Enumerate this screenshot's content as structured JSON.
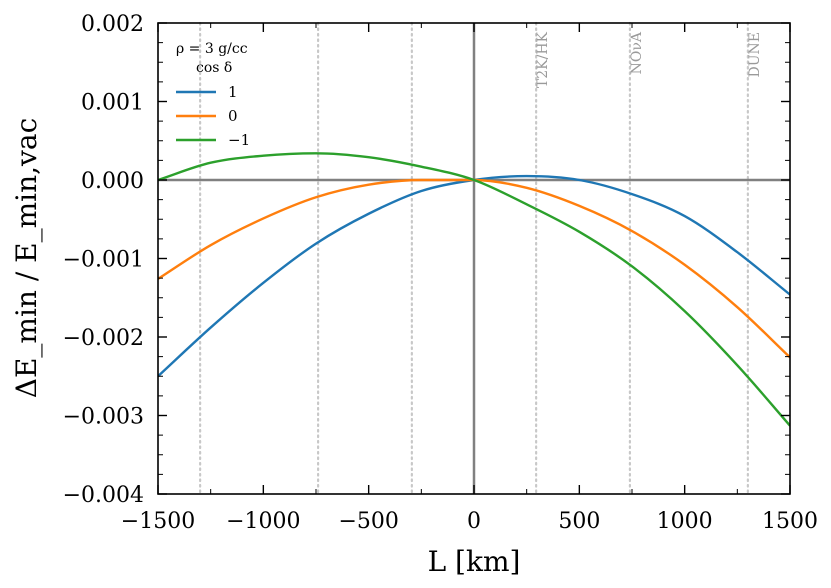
{
  "chart_data": {
    "type": "line",
    "title": "",
    "xlabel": "L [km]",
    "ylabel": "ΔE_min / E_min,vac",
    "xlim": [
      -1500,
      1500
    ],
    "ylim": [
      -0.004,
      0.002
    ],
    "x_ticks": [
      -1500,
      -1000,
      -500,
      0,
      500,
      1000,
      1500
    ],
    "x_tick_labels": [
      "−1500",
      "−1000",
      "−500",
      "0",
      "500",
      "1000",
      "1500"
    ],
    "y_ticks": [
      -0.004,
      -0.003,
      -0.002,
      -0.001,
      0.0,
      0.001,
      0.002
    ],
    "y_tick_labels": [
      "−0.004",
      "−0.003",
      "−0.002",
      "−0.001",
      "0.000",
      "0.001",
      "0.002"
    ],
    "legend": {
      "title_line1": "ρ = 3 g/cc",
      "title_line2": "cos δ",
      "placement": "top-left"
    },
    "x": [
      -1500,
      -1250,
      -1000,
      -750,
      -500,
      -250,
      0,
      250,
      500,
      750,
      1000,
      1250,
      1500
    ],
    "series": [
      {
        "name": "1",
        "color": "#1f77b4",
        "values": [
          -0.0025,
          -0.00188,
          -0.00131,
          -0.00081,
          -0.00043,
          -0.00014,
          0.0,
          5e-05,
          0.0,
          -0.00018,
          -0.00046,
          -0.00092,
          -0.00146
        ]
      },
      {
        "name": "0",
        "color": "#ff7f0e",
        "values": [
          -0.00126,
          -0.00083,
          -0.00049,
          -0.00022,
          -6e-05,
          0.0,
          0.0,
          -0.0001,
          -0.00033,
          -0.00065,
          -0.00108,
          -0.00162,
          -0.00226
        ]
      },
      {
        "name": "−1",
        "color": "#2ca02c",
        "values": [
          0.0,
          0.00022,
          0.00031,
          0.00034,
          0.00029,
          0.00017,
          0.0,
          -0.00031,
          -0.00066,
          -0.0011,
          -0.00167,
          -0.00236,
          -0.00313
        ]
      }
    ],
    "reference_lines": [
      {
        "x": -1300,
        "label": ""
      },
      {
        "x": -740,
        "label": ""
      },
      {
        "x": -295,
        "label": ""
      },
      {
        "x": 295,
        "label": "T2K/HK"
      },
      {
        "x": 740,
        "label": "NOνA"
      },
      {
        "x": 1300,
        "label": "DUNE"
      }
    ],
    "zero_lines": {
      "x": 0,
      "y": 0
    },
    "colors": {
      "axis": "#000000",
      "zero_line": "#808080",
      "reference_line": "#c8c8c8",
      "reference_label": "#9a9a9a"
    }
  }
}
